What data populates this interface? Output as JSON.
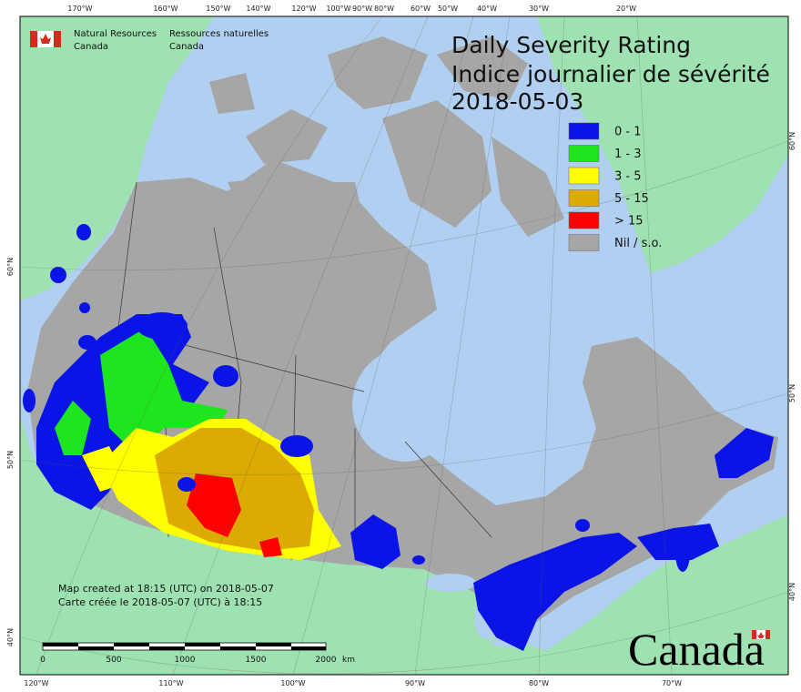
{
  "header": {
    "org_en": [
      "Natural Resources",
      "Canada"
    ],
    "org_fr": [
      "Ressources naturelles",
      "Canada"
    ]
  },
  "title": [
    "Daily Severity Rating",
    "Indice journalier de sévérité",
    "2018-05-03"
  ],
  "legend": [
    {
      "label": "0 - 1",
      "color": "#0a14e6"
    },
    {
      "label": "1 - 3",
      "color": "#1ee61e"
    },
    {
      "label": "3 - 5",
      "color": "#ffff00"
    },
    {
      "label": "5 - 15",
      "color": "#dcaa00"
    },
    {
      "label": "> 15",
      "color": "#ff0000"
    },
    {
      "label": "Nil / s.o.",
      "color": "#a6a6a6"
    }
  ],
  "graticule": {
    "top": [
      "170°W",
      "160°W",
      "150°W",
      "140°W",
      "120°W",
      "100°W",
      "90°W",
      "80°W",
      "60°W",
      "50°W",
      "40°W",
      "30°W",
      "20°W"
    ],
    "bottom": [
      "120°W",
      "110°W",
      "100°W",
      "90°W",
      "80°W",
      "70°W"
    ],
    "left": [
      "60°N",
      "50°N",
      "40°N"
    ],
    "right": [
      "60°N",
      "50°N",
      "40°N"
    ]
  },
  "note": [
    "Map created at 18:15 (UTC) on 2018-05-07",
    "Carte créée le 2018-05-07 (UTC) à 18:15"
  ],
  "scale_bar": {
    "ticks": [
      0,
      500,
      1000,
      1500,
      2000
    ],
    "unit": "km"
  },
  "wordmark": "Canada"
}
